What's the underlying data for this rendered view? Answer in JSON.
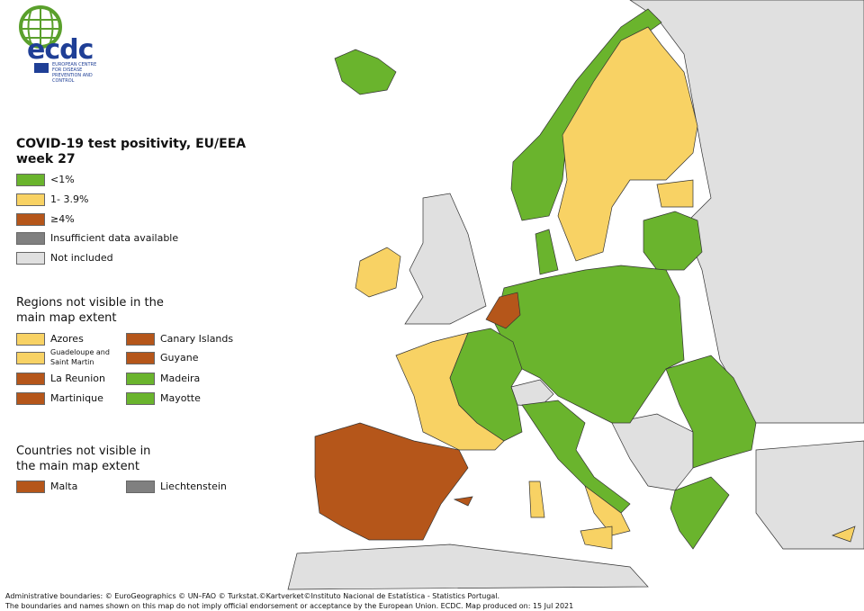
{
  "logo": {
    "name": "ecdc",
    "subtitle": "EUROPEAN CENTRE FOR DISEASE PREVENTION AND CONTROL"
  },
  "title": [
    "COVID-19 test positivity, EU/EEA",
    "week 27"
  ],
  "legend": [
    {
      "label": "<1%",
      "color": "#6ab42d"
    },
    {
      "label": "1- 3.9%",
      "color": "#f8d264"
    },
    {
      "label": "≥4%",
      "color": "#b5561a"
    },
    {
      "label": "Insufficient data available",
      "color": "#808080"
    },
    {
      "label": "Not included",
      "color": "#e0e0e0"
    }
  ],
  "regions_heading": "Regions not visible in the main map extent",
  "regions": [
    {
      "label": "Azores",
      "color": "#f8d264"
    },
    {
      "label": "Canary Islands",
      "color": "#b5561a"
    },
    {
      "label": "Guadeloupe and Saint Martin",
      "color": "#f8d264"
    },
    {
      "label": "Guyane",
      "color": "#b5561a"
    },
    {
      "label": "La Reunion",
      "color": "#b5561a"
    },
    {
      "label": "Madeira",
      "color": "#6ab42d"
    },
    {
      "label": "Martinique",
      "color": "#b5561a"
    },
    {
      "label": "Mayotte",
      "color": "#6ab42d"
    }
  ],
  "countries_heading": "Countries not visible in the main map extent",
  "countries": [
    {
      "label": "Malta",
      "color": "#b5561a"
    },
    {
      "label": "Liechtenstein",
      "color": "#808080"
    }
  ],
  "footer": [
    "Administrative boundaries: © EuroGeographics © UN–FAO © Turkstat.©Kartverket©Instituto Nacional de Estatística - Statistics Portugal.",
    "The boundaries and names shown on this map do not imply official endorsement or acceptance by the European Union. ECDC. Map produced on: 15 Jul 2021"
  ]
}
